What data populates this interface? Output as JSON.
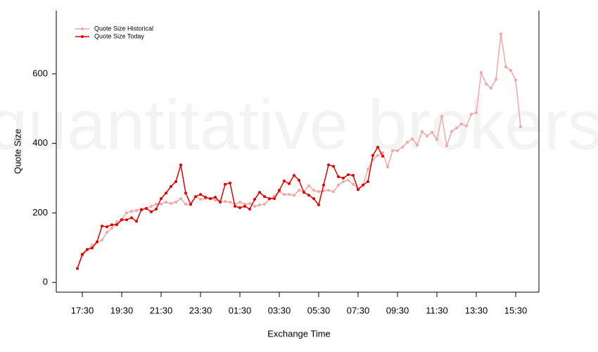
{
  "chart_data": {
    "type": "line",
    "watermark": "quantitative brokers",
    "x_label": "Exchange Time",
    "y_label": "Quote Size",
    "categories": [
      null,
      "17:30",
      null,
      null,
      null,
      null,
      null,
      null,
      null,
      "19:30",
      null,
      null,
      null,
      null,
      null,
      null,
      null,
      "21:30",
      null,
      null,
      null,
      null,
      null,
      null,
      null,
      "23:30",
      null,
      null,
      null,
      null,
      null,
      null,
      null,
      "01:30",
      null,
      null,
      null,
      null,
      null,
      null,
      null,
      "03:30",
      null,
      null,
      null,
      null,
      null,
      null,
      null,
      "05:30",
      null,
      null,
      null,
      null,
      null,
      null,
      null,
      "07:30",
      null,
      null,
      null,
      null,
      null,
      null,
      null,
      "09:30",
      null,
      null,
      null,
      null,
      null,
      null,
      null,
      "11:30",
      null,
      null,
      null,
      null,
      null,
      null,
      null,
      "13:30",
      null,
      null,
      null,
      null,
      null,
      null,
      null,
      "15:30",
      null
    ],
    "series": [
      {
        "name": "Quote Size Historical",
        "color": "#f4a6a6",
        "values": [
          40,
          77,
          93,
          107,
          115,
          122,
          144,
          156,
          174,
          182,
          200,
          205,
          207,
          211,
          213,
          219,
          225,
          225,
          231,
          227,
          231,
          241,
          225,
          223,
          247,
          239,
          241,
          241,
          237,
          233,
          233,
          231,
          225,
          231,
          225,
          227,
          219,
          223,
          225,
          239,
          249,
          261,
          253,
          253,
          251,
          265,
          261,
          278,
          265,
          261,
          263,
          265,
          261,
          280,
          290,
          294,
          282,
          270,
          280,
          326,
          353,
          365,
          373,
          332,
          379,
          379,
          389,
          403,
          413,
          395,
          434,
          421,
          432,
          411,
          478,
          393,
          434,
          444,
          456,
          450,
          484,
          488,
          604,
          571,
          559,
          584,
          715,
          620,
          610,
          582,
          448
        ]
      },
      {
        "name": "Quote Size Today",
        "color": "#e00000",
        "values": [
          40,
          81,
          95,
          99,
          117,
          162,
          160,
          166,
          166,
          180,
          180,
          186,
          176,
          209,
          213,
          203,
          211,
          241,
          257,
          276,
          290,
          338,
          257,
          225,
          247,
          253,
          245,
          241,
          245,
          231,
          282,
          286,
          219,
          215,
          219,
          211,
          239,
          259,
          247,
          241,
          241,
          265,
          292,
          284,
          308,
          294,
          259,
          251,
          241,
          223,
          280,
          338,
          334,
          304,
          300,
          310,
          308,
          267,
          280,
          290,
          365,
          389,
          363,
          null,
          null,
          null,
          null,
          null,
          null,
          null,
          null,
          null,
          null,
          null,
          null,
          null,
          null,
          null,
          null,
          null,
          null,
          null,
          null,
          null,
          null,
          null,
          null,
          null,
          null,
          null,
          null
        ]
      }
    ],
    "ylim": [
      -28,
      782
    ],
    "yticks": [
      0,
      200,
      400,
      600
    ],
    "legend": "upper left",
    "grid": false
  }
}
